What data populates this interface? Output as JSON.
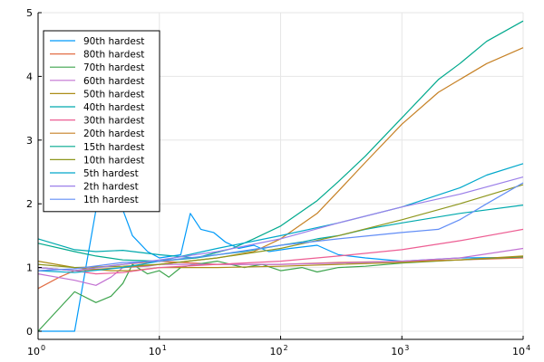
{
  "chart_data": {
    "type": "line",
    "x_scale": "log10",
    "xlim": [
      1,
      10000
    ],
    "ylim": [
      0,
      5
    ],
    "grid": true,
    "legend_placement": "top-left",
    "x_ticks": [
      {
        "value": 1,
        "base": "10",
        "exp": "0"
      },
      {
        "value": 10,
        "base": "10",
        "exp": "1"
      },
      {
        "value": 100,
        "base": "10",
        "exp": "2"
      },
      {
        "value": 1000,
        "base": "10",
        "exp": "3"
      },
      {
        "value": 10000,
        "base": "10",
        "exp": "4"
      }
    ],
    "y_ticks": [
      {
        "value": 0,
        "label": "0"
      },
      {
        "value": 1,
        "label": "1"
      },
      {
        "value": 2,
        "label": "2"
      },
      {
        "value": 3,
        "label": "3"
      },
      {
        "value": 4,
        "label": "4"
      },
      {
        "value": 5,
        "label": "5"
      }
    ],
    "series": [
      {
        "name": "90th hardest",
        "color": "#009af9",
        "points": [
          [
            1,
            0
          ],
          [
            2,
            0
          ],
          [
            3,
            1.9
          ],
          [
            4,
            2.4
          ],
          [
            6,
            1.5
          ],
          [
            8,
            1.25
          ],
          [
            10,
            1.15
          ],
          [
            15,
            1.2
          ],
          [
            18,
            1.85
          ],
          [
            22,
            1.6
          ],
          [
            28,
            1.55
          ],
          [
            35,
            1.4
          ],
          [
            45,
            1.3
          ],
          [
            60,
            1.35
          ],
          [
            80,
            1.25
          ],
          [
            120,
            1.3
          ],
          [
            200,
            1.35
          ],
          [
            300,
            1.2
          ],
          [
            500,
            1.15
          ],
          [
            1000,
            1.1
          ],
          [
            3000,
            1.15
          ],
          [
            10000,
            1.16
          ]
        ]
      },
      {
        "name": "80th hardest",
        "color": "#e26f46",
        "points": [
          [
            1,
            0.67
          ],
          [
            1.5,
            0.85
          ],
          [
            2,
            0.95
          ],
          [
            3,
            1.0
          ],
          [
            5,
            1.05
          ],
          [
            10,
            1.1
          ],
          [
            30,
            1.05
          ],
          [
            100,
            1.05
          ],
          [
            300,
            1.08
          ],
          [
            1000,
            1.1
          ],
          [
            3000,
            1.12
          ],
          [
            10000,
            1.15
          ]
        ]
      },
      {
        "name": "70th hardest",
        "color": "#3da44d",
        "points": [
          [
            1,
            0
          ],
          [
            2,
            0.62
          ],
          [
            3,
            0.45
          ],
          [
            4,
            0.55
          ],
          [
            5,
            0.75
          ],
          [
            6,
            1.05
          ],
          [
            8,
            0.9
          ],
          [
            10,
            0.95
          ],
          [
            12,
            0.85
          ],
          [
            15,
            1.0
          ],
          [
            20,
            1.05
          ],
          [
            30,
            1.1
          ],
          [
            50,
            1.0
          ],
          [
            70,
            1.05
          ],
          [
            100,
            0.95
          ],
          [
            150,
            1.0
          ],
          [
            200,
            0.93
          ],
          [
            300,
            1.0
          ],
          [
            500,
            1.02
          ],
          [
            1000,
            1.07
          ],
          [
            3000,
            1.12
          ],
          [
            10000,
            1.17
          ]
        ]
      },
      {
        "name": "60th hardest",
        "color": "#c271d2",
        "points": [
          [
            1,
            0.9
          ],
          [
            2,
            0.8
          ],
          [
            3,
            0.72
          ],
          [
            4,
            0.85
          ],
          [
            5,
            1.0
          ],
          [
            8,
            1.02
          ],
          [
            10,
            1.05
          ],
          [
            30,
            1.05
          ],
          [
            100,
            1.05
          ],
          [
            300,
            1.07
          ],
          [
            1000,
            1.1
          ],
          [
            3000,
            1.15
          ],
          [
            10000,
            1.3
          ]
        ]
      },
      {
        "name": "50th hardest",
        "color": "#ac8d18",
        "points": [
          [
            1,
            1.1
          ],
          [
            2,
            1.0
          ],
          [
            4,
            0.95
          ],
          [
            6,
            0.95
          ],
          [
            10,
            1.0
          ],
          [
            30,
            1.0
          ],
          [
            100,
            1.02
          ],
          [
            300,
            1.05
          ],
          [
            1000,
            1.08
          ],
          [
            3000,
            1.12
          ],
          [
            10000,
            1.18
          ]
        ]
      },
      {
        "name": "40th hardest",
        "color": "#00a9ad",
        "points": [
          [
            1,
            1.45
          ],
          [
            2,
            1.28
          ],
          [
            3,
            1.25
          ],
          [
            5,
            1.27
          ],
          [
            10,
            1.2
          ],
          [
            20,
            1.15
          ],
          [
            30,
            1.2
          ],
          [
            50,
            1.25
          ],
          [
            100,
            1.35
          ],
          [
            150,
            1.4
          ],
          [
            200,
            1.45
          ],
          [
            300,
            1.5
          ],
          [
            500,
            1.6
          ],
          [
            1000,
            1.7
          ],
          [
            3000,
            1.85
          ],
          [
            10000,
            1.98
          ]
        ]
      },
      {
        "name": "30th hardest",
        "color": "#ed5e93",
        "points": [
          [
            1,
            1.0
          ],
          [
            2,
            0.95
          ],
          [
            3,
            0.9
          ],
          [
            5,
            0.92
          ],
          [
            10,
            1.0
          ],
          [
            30,
            1.05
          ],
          [
            100,
            1.1
          ],
          [
            300,
            1.18
          ],
          [
            1000,
            1.28
          ],
          [
            3000,
            1.42
          ],
          [
            10000,
            1.6
          ]
        ]
      },
      {
        "name": "20th hardest",
        "color": "#c68125",
        "points": [
          [
            1,
            1.0
          ],
          [
            2,
            0.95
          ],
          [
            5,
            1.0
          ],
          [
            10,
            1.05
          ],
          [
            30,
            1.15
          ],
          [
            60,
            1.25
          ],
          [
            100,
            1.45
          ],
          [
            200,
            1.85
          ],
          [
            300,
            2.2
          ],
          [
            500,
            2.65
          ],
          [
            1000,
            3.25
          ],
          [
            2000,
            3.75
          ],
          [
            3000,
            3.95
          ],
          [
            5000,
            4.2
          ],
          [
            10000,
            4.45
          ]
        ]
      },
      {
        "name": "15th hardest",
        "color": "#00a98d",
        "points": [
          [
            1,
            1.38
          ],
          [
            2,
            1.25
          ],
          [
            3,
            1.18
          ],
          [
            5,
            1.12
          ],
          [
            10,
            1.1
          ],
          [
            20,
            1.15
          ],
          [
            40,
            1.3
          ],
          [
            60,
            1.45
          ],
          [
            100,
            1.65
          ],
          [
            200,
            2.05
          ],
          [
            300,
            2.35
          ],
          [
            500,
            2.75
          ],
          [
            1000,
            3.35
          ],
          [
            2000,
            3.95
          ],
          [
            3000,
            4.2
          ],
          [
            5000,
            4.55
          ],
          [
            10000,
            4.87
          ]
        ]
      },
      {
        "name": "10th hardest",
        "color": "#8e971d",
        "points": [
          [
            1,
            1.05
          ],
          [
            2,
            1.0
          ],
          [
            5,
            1.02
          ],
          [
            10,
            1.05
          ],
          [
            30,
            1.15
          ],
          [
            100,
            1.3
          ],
          [
            300,
            1.5
          ],
          [
            1000,
            1.75
          ],
          [
            3000,
            2.0
          ],
          [
            10000,
            2.3
          ]
        ]
      },
      {
        "name": "5th hardest",
        "color": "#00a8cb",
        "points": [
          [
            1,
            0.95
          ],
          [
            2,
            0.92
          ],
          [
            5,
            1.0
          ],
          [
            10,
            1.1
          ],
          [
            30,
            1.3
          ],
          [
            100,
            1.5
          ],
          [
            300,
            1.7
          ],
          [
            1000,
            1.95
          ],
          [
            3000,
            2.25
          ],
          [
            5000,
            2.45
          ],
          [
            10000,
            2.63
          ]
        ]
      },
      {
        "name": "2th hardest",
        "color": "#9b7fe9",
        "points": [
          [
            1,
            1.0
          ],
          [
            2,
            0.95
          ],
          [
            5,
            1.05
          ],
          [
            10,
            1.12
          ],
          [
            30,
            1.25
          ],
          [
            100,
            1.45
          ],
          [
            300,
            1.7
          ],
          [
            1000,
            1.95
          ],
          [
            3000,
            2.15
          ],
          [
            10000,
            2.42
          ]
        ]
      },
      {
        "name": "1th hardest",
        "color": "#618df6",
        "points": [
          [
            1,
            0.95
          ],
          [
            2,
            0.98
          ],
          [
            5,
            1.08
          ],
          [
            10,
            1.1
          ],
          [
            30,
            1.2
          ],
          [
            100,
            1.35
          ],
          [
            300,
            1.45
          ],
          [
            1000,
            1.55
          ],
          [
            2000,
            1.6
          ],
          [
            3000,
            1.75
          ],
          [
            5000,
            2.0
          ],
          [
            10000,
            2.33
          ]
        ]
      }
    ]
  }
}
